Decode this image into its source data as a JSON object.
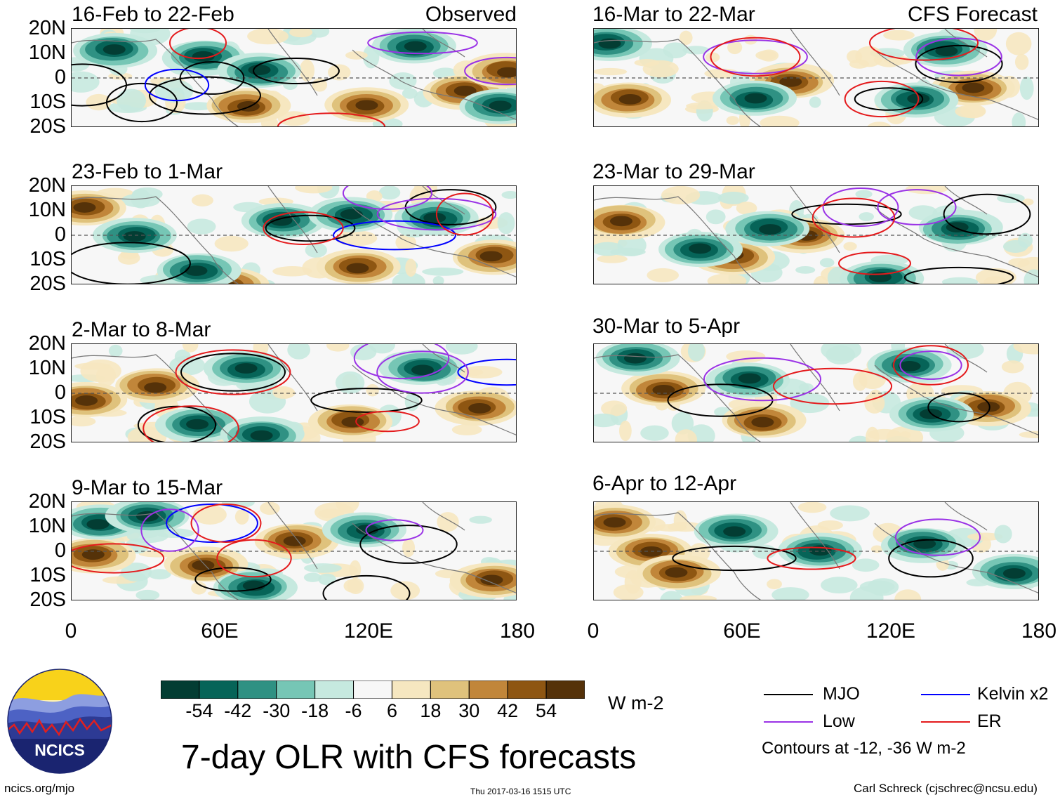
{
  "header": {
    "observed_label": "Observed",
    "forecast_label": "CFS Forecast"
  },
  "panels": {
    "observed": [
      {
        "title": "16-Feb to 22-Feb"
      },
      {
        "title": "23-Feb to 1-Mar"
      },
      {
        "title": "2-Mar to 8-Mar"
      },
      {
        "title": "9-Mar to 15-Mar"
      }
    ],
    "forecast": [
      {
        "title": "16-Mar to 22-Mar"
      },
      {
        "title": "23-Mar to 29-Mar"
      },
      {
        "title": "30-Mar to 5-Apr"
      },
      {
        "title": "6-Apr to 12-Apr"
      }
    ]
  },
  "axes": {
    "lat_labels": [
      "20N",
      "10N",
      "0",
      "10S",
      "20S"
    ],
    "lon_labels": [
      "0",
      "60E",
      "120E",
      "180"
    ]
  },
  "colorbar": {
    "colors": [
      "#033d33",
      "#066458",
      "#2f9183",
      "#76c6b5",
      "#c6e9df",
      "#f7f7f7",
      "#f6e7c0",
      "#dfc27c",
      "#c1863a",
      "#8e5612",
      "#553209"
    ],
    "labels": [
      "-54",
      "-42",
      "-30",
      "-18",
      "-6",
      "6",
      "18",
      "30",
      "42",
      "54"
    ],
    "units": "W m-2"
  },
  "title": "7-day OLR with CFS forecasts",
  "legend": {
    "items": [
      {
        "label": "MJO",
        "color": "#000000"
      },
      {
        "label": "Kelvin x2",
        "color": "#0000ff"
      },
      {
        "label": "Low",
        "color": "#9a32e6"
      },
      {
        "label": "ER",
        "color": "#e41a1c"
      }
    ],
    "note": "Contours at -12, -36 W m-2"
  },
  "footer": {
    "left": "ncics.org/mjo",
    "center": "Thu 2017-03-16 1515 UTC",
    "right": "Carl Schreck (cjschrec@ncsu.edu)"
  },
  "logo": {
    "text": "NCICS"
  }
}
